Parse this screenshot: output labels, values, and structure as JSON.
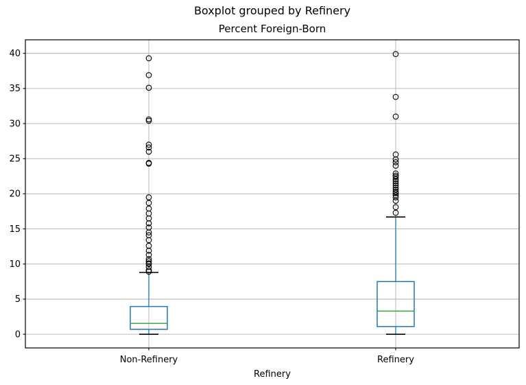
{
  "chart_data": {
    "type": "boxplot",
    "title": "Boxplot grouped by Refinery",
    "subtitle": "Percent Foreign-Born",
    "xlabel": "Refinery",
    "categories": [
      "Non-Refinery",
      "Refinery"
    ],
    "yticks": [
      0,
      5,
      10,
      15,
      20,
      25,
      30,
      35,
      40
    ],
    "ylim": [
      -1.95,
      41.93
    ],
    "grid": true,
    "legend": "none",
    "colors": {
      "box": "#1f77b4",
      "whisker": "#1f77b4",
      "median": "#2ca02c",
      "cap": "#000000",
      "flier": "#000000",
      "grid": "#b0b0b0",
      "spine": "#000000",
      "background": "#ffffff"
    },
    "series": [
      {
        "name": "Non-Refinery",
        "whisker_low": 0.0,
        "q1": 0.7,
        "median": 1.55,
        "q3": 3.95,
        "whisker_high": 8.8,
        "outliers": [
          8.9,
          9.1,
          9.6,
          10.0,
          10.1,
          10.4,
          10.7,
          11.3,
          11.9,
          12.6,
          13.4,
          14.1,
          14.5,
          15.2,
          15.8,
          16.5,
          17.2,
          17.9,
          18.7,
          19.5,
          24.3,
          24.4,
          26.0,
          26.6,
          27.0,
          30.4,
          30.6,
          35.1,
          36.9,
          39.3
        ]
      },
      {
        "name": "Refinery",
        "whisker_low": 0.0,
        "q1": 1.1,
        "median": 3.3,
        "q3": 7.5,
        "whisker_high": 16.7,
        "outliers": [
          17.3,
          18.1,
          19.0,
          19.5,
          19.8,
          20.1,
          20.3,
          20.6,
          20.9,
          21.2,
          21.5,
          21.8,
          22.1,
          22.4,
          22.6,
          22.9,
          24.0,
          24.5,
          24.9,
          25.6,
          31.0,
          33.8,
          39.9
        ]
      }
    ]
  }
}
